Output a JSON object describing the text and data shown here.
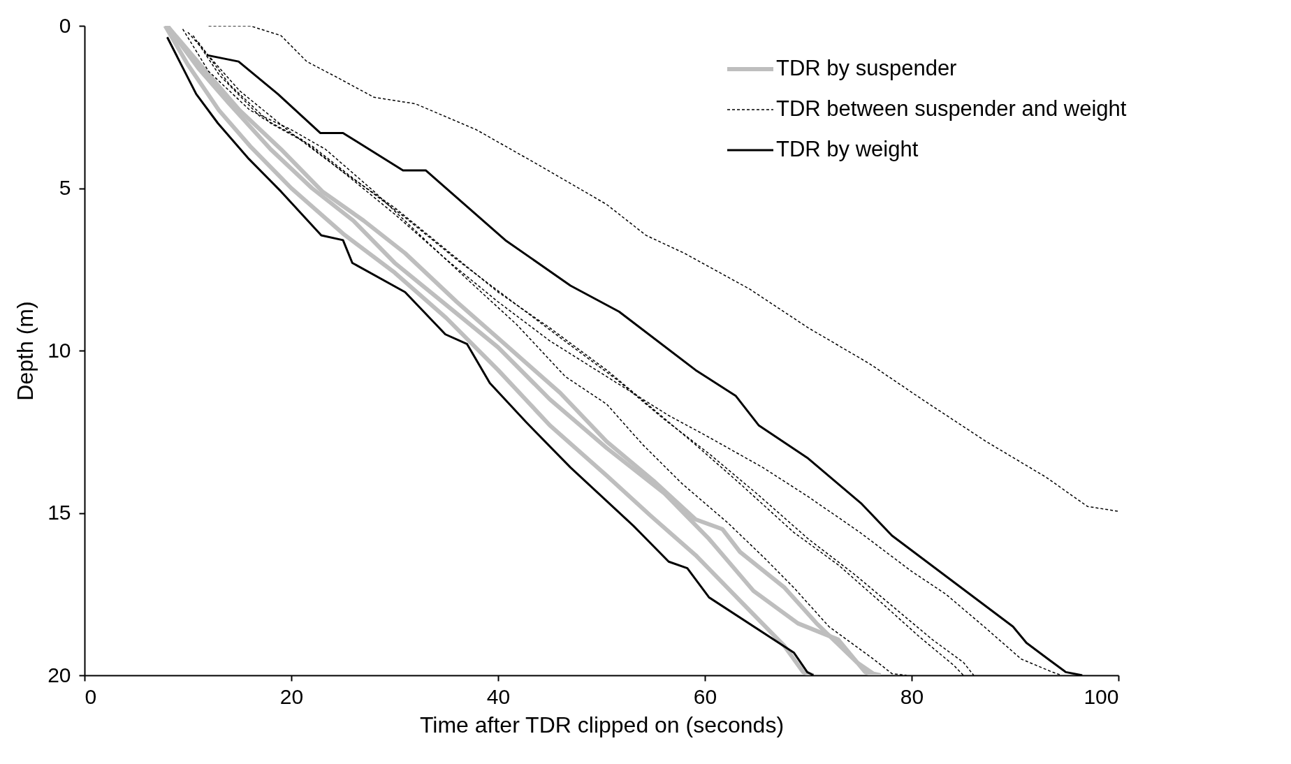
{
  "chart_data": {
    "type": "line",
    "xlabel": "Time after TDR clipped on (seconds)",
    "ylabel": "Depth (m)",
    "xlim": [
      0,
      100
    ],
    "ylim": [
      20,
      0
    ],
    "xticks": [
      0,
      20,
      40,
      60,
      80,
      100
    ],
    "yticks": [
      0,
      5,
      10,
      15,
      20
    ],
    "grid": false,
    "legend": "top right",
    "series": [
      {
        "name": "TDR by suspender",
        "color": "#bebebe",
        "line_style": "solid",
        "x": [
          7.8,
          10,
          13,
          16,
          20,
          25,
          30,
          35,
          40,
          45,
          50.5,
          54.8,
          59.1,
          63.4,
          67.7,
          69.5,
          70.5
        ],
        "values": [
          0,
          1.2,
          2.6,
          3.7,
          5.0,
          6.4,
          7.6,
          9.0,
          10.6,
          12.3,
          13.85,
          15.1,
          16.3,
          17.7,
          19.1,
          19.9,
          20
        ]
      },
      {
        "color": "#bebebe",
        "line_style": "solid",
        "x": [
          8,
          11,
          14,
          18,
          22,
          26,
          30,
          35,
          40,
          45,
          50.5,
          56.1,
          60.4,
          64.7,
          69,
          72.9,
          75.5,
          76.5
        ],
        "values": [
          0,
          1.3,
          2.4,
          3.8,
          5.0,
          6.0,
          7.3,
          8.6,
          9.9,
          11.5,
          13.0,
          14.4,
          15.8,
          17.4,
          18.4,
          18.9,
          19.9,
          20
        ]
      },
      {
        "color": "#bebebe",
        "line_style": "solid",
        "x": [
          8,
          12,
          15,
          19,
          23,
          27,
          31,
          36,
          41,
          46,
          50.5,
          55,
          59.1,
          61.7,
          63.4,
          67.7,
          70.8,
          74.7,
          76.3,
          77
        ],
        "values": [
          0,
          1.5,
          2.6,
          3.8,
          5.1,
          6.0,
          7.0,
          8.5,
          9.9,
          11.3,
          12.8,
          14.0,
          15.2,
          15.5,
          16.2,
          17.3,
          18.4,
          19.6,
          19.95,
          20
        ]
      },
      {
        "name": "TDR between suspender and weight",
        "color": "#000000",
        "line_style": "dashed",
        "x": [
          12,
          16,
          19,
          21.5,
          24.5,
          28,
          32,
          37.9,
          44,
          50.5,
          54.3,
          58,
          64.3,
          70,
          75.9,
          81,
          87.2,
          93,
          97,
          100
        ],
        "values": [
          0,
          0,
          0.3,
          1.1,
          1.6,
          2.2,
          2.4,
          3.2,
          4.3,
          5.5,
          6.45,
          7,
          8.1,
          9.3,
          10.4,
          11.5,
          12.8,
          13.9,
          14.8,
          14.95
        ]
      },
      {
        "color": "#000000",
        "line_style": "dashed",
        "x": [
          9.5,
          12,
          16,
          20,
          23.3,
          28,
          32.3,
          37,
          41.8,
          46.5,
          50.5,
          54,
          57.8,
          62.2,
          65.8,
          68.6,
          72,
          76.3,
          78.1,
          79.5
        ],
        "values": [
          0.1,
          1.4,
          2.6,
          3.2,
          3.8,
          5.1,
          6.4,
          7.8,
          9.2,
          10.8,
          11.65,
          12.9,
          14.1,
          15.3,
          16.4,
          17.3,
          18.5,
          19.5,
          19.95,
          20
        ]
      },
      {
        "color": "#000000",
        "line_style": "dashed",
        "x": [
          10.5,
          13,
          17,
          21,
          25,
          30,
          35,
          40,
          45,
          50.5,
          55,
          59.1,
          63.4,
          68.6,
          72.9,
          77.2,
          80.7,
          84.1,
          85
        ],
        "values": [
          0.3,
          1.5,
          2.8,
          3.5,
          4.5,
          5.6,
          6.9,
          8.2,
          9.3,
          10.6,
          11.8,
          12.9,
          14.1,
          15.6,
          16.6,
          17.8,
          18.8,
          19.7,
          20
        ]
      },
      {
        "color": "#000000",
        "line_style": "dashed",
        "x": [
          11,
          14,
          18,
          22,
          26,
          31,
          36,
          41,
          46,
          51.5,
          56,
          60.5,
          65,
          70,
          74.5,
          79,
          82,
          85,
          86
        ],
        "values": [
          0.5,
          1.8,
          3.0,
          3.7,
          4.7,
          5.9,
          7.2,
          8.4,
          9.6,
          10.9,
          12.1,
          13.2,
          14.4,
          15.8,
          16.9,
          18.1,
          18.9,
          19.6,
          20
        ]
      },
      {
        "color": "#000000",
        "line_style": "dashed",
        "x": [
          10,
          15,
          20,
          25,
          30,
          35,
          40,
          45,
          50,
          56.5,
          60,
          65.6,
          70,
          75,
          80,
          83.3,
          87,
          90.6,
          93.6,
          94.5
        ],
        "values": [
          0.2,
          2.0,
          3.3,
          4.5,
          5.8,
          7.2,
          8.5,
          9.7,
          10.7,
          12.0,
          12.6,
          13.6,
          14.5,
          15.6,
          16.8,
          17.5,
          18.5,
          19.5,
          19.9,
          20
        ]
      },
      {
        "name": "TDR by weight",
        "color": "#000000",
        "line_style": "solid",
        "x": [
          8,
          10.8,
          12.9,
          15.9,
          19,
          22.9,
          25,
          25.9,
          31,
          34.9,
          37,
          39.2,
          42.7,
          47,
          53.1,
          56.5,
          58.3,
          60.4,
          68.6,
          69.9,
          70.5
        ],
        "values": [
          0.35,
          2.1,
          3.0,
          4.1,
          5.1,
          6.45,
          6.6,
          7.3,
          8.2,
          9.5,
          9.8,
          11.0,
          12.2,
          13.6,
          15.4,
          16.5,
          16.7,
          17.6,
          19.3,
          19.9,
          20
        ]
      },
      {
        "color": "#000000",
        "line_style": "solid",
        "x": [
          11.8,
          14.9,
          18.7,
          22.8,
          25,
          30.8,
          33,
          40.7,
          47,
          51.7,
          59.1,
          63,
          65.2,
          69.9,
          75.1,
          78.1,
          89.8,
          91.1,
          93.2,
          94.9,
          96.5
        ],
        "values": [
          0.9,
          1.1,
          2.1,
          3.3,
          3.3,
          4.45,
          4.45,
          6.6,
          8.0,
          8.8,
          10.6,
          11.4,
          12.3,
          13.3,
          14.7,
          15.7,
          18.5,
          19.0,
          19.5,
          19.9,
          20
        ]
      }
    ]
  }
}
